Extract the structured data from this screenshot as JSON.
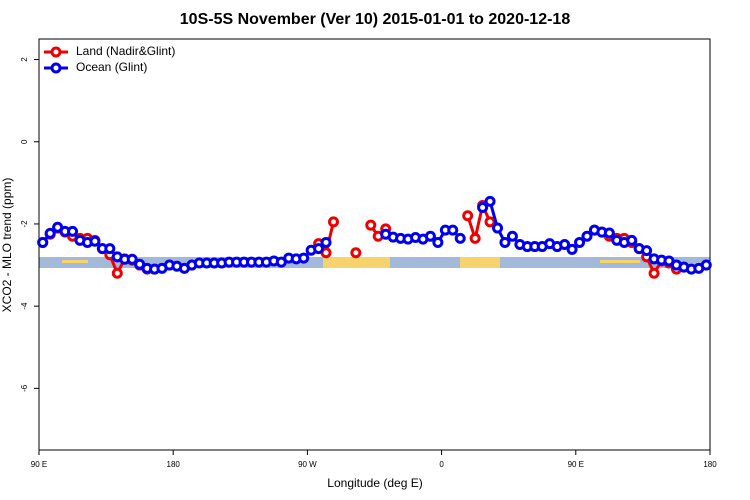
{
  "chart_data": {
    "type": "line",
    "title": "10S-5S November (Ver 10)   2015-01-01 to 2020-12-18",
    "xlabel": "Longitude (deg E)",
    "ylabel": "XCO2 - MLO trend (ppm)",
    "xlim": [
      90,
      540
    ],
    "ylim": [
      -7.5,
      2.5
    ],
    "xticks": [
      {
        "value": 90,
        "label": "90 E"
      },
      180,
      {
        "value": 270,
        "label": "90 W"
      },
      {
        "value": 360,
        "label": "0"
      },
      {
        "value": 450,
        "label": "90 E"
      },
      {
        "value": 540,
        "label": "180"
      }
    ],
    "yticks": [
      -6,
      -4,
      -2,
      0,
      2
    ],
    "legend": "top-left",
    "x": [
      92.5,
      97.5,
      102.5,
      107.5,
      112.5,
      117.5,
      122.5,
      127.5,
      132.5,
      137.5,
      142.5,
      147.5,
      152.5,
      157.5,
      162.5,
      167.5,
      172.5,
      177.5,
      182.5,
      187.5,
      192.5,
      197.5,
      202.5,
      207.5,
      212.5,
      217.5,
      222.5,
      227.5,
      232.5,
      237.5,
      242.5,
      247.5,
      252.5,
      257.5,
      262.5,
      267.5,
      272.5,
      277.5,
      282.5,
      287.5,
      292.5,
      297.5,
      302.5,
      307.5,
      312.5,
      317.5,
      322.5,
      327.5,
      332.5,
      337.5,
      342.5,
      347.5,
      352.5,
      357.5,
      362.5,
      367.5,
      372.5,
      377.5,
      382.5,
      387.5,
      392.5,
      397.5,
      402.5,
      407.5,
      412.5,
      417.5,
      422.5,
      427.5,
      432.5,
      437.5,
      442.5,
      447.5,
      452.5,
      457.5,
      462.5,
      467.5,
      472.5,
      477.5,
      482.5,
      487.5,
      492.5,
      497.5,
      502.5,
      507.5,
      512.5,
      517.5,
      522.5,
      527.5,
      532.5,
      537.5
    ],
    "series": [
      {
        "name": "Land (Nadir&Glint)",
        "color": "#ee0000",
        "values": [
          -2.45,
          -2.25,
          -2.1,
          -2.2,
          -2.3,
          -2.35,
          -2.35,
          -2.4,
          -2.6,
          -2.75,
          -3.2,
          -2.85,
          -2.88,
          -3.0,
          -3.1,
          -3.1,
          null,
          null,
          null,
          null,
          null,
          null,
          null,
          null,
          null,
          null,
          null,
          null,
          null,
          null,
          null,
          null,
          null,
          null,
          null,
          null,
          null,
          -2.48,
          -2.7,
          -1.95,
          null,
          null,
          -2.7,
          null,
          -2.03,
          -2.3,
          -2.12,
          null,
          null,
          null,
          null,
          null,
          null,
          null,
          null,
          null,
          null,
          -1.8,
          -2.35,
          -1.55,
          -1.95,
          null,
          null,
          null,
          null,
          null,
          null,
          null,
          null,
          null,
          null,
          null,
          null,
          null,
          -2.15,
          -2.2,
          -2.3,
          -2.35,
          -2.35,
          -2.45,
          -2.6,
          -2.8,
          -3.2,
          -2.9,
          -2.95,
          -3.1,
          -3.05,
          null,
          null,
          null
        ]
      },
      {
        "name": "Ocean (Glint)",
        "color": "#0000ee",
        "values": [
          -2.45,
          -2.23,
          -2.08,
          -2.18,
          -2.18,
          -2.4,
          -2.45,
          -2.42,
          -2.6,
          -2.6,
          -2.8,
          -2.86,
          -2.86,
          -2.98,
          -3.08,
          -3.1,
          -3.08,
          -3.0,
          -3.03,
          -3.08,
          -3.0,
          -2.95,
          -2.95,
          -2.95,
          -2.95,
          -2.93,
          -2.93,
          -2.93,
          -2.93,
          -2.93,
          -2.93,
          -2.9,
          -2.93,
          -2.83,
          -2.85,
          -2.83,
          -2.64,
          -2.6,
          -2.45,
          null,
          null,
          null,
          null,
          null,
          null,
          null,
          -2.25,
          -2.32,
          -2.35,
          -2.37,
          -2.33,
          -2.37,
          -2.3,
          -2.45,
          -2.15,
          -2.15,
          -2.35,
          null,
          null,
          -1.6,
          -1.45,
          -2.1,
          -2.45,
          -2.3,
          -2.5,
          -2.55,
          -2.55,
          -2.55,
          -2.48,
          -2.55,
          -2.5,
          -2.62,
          -2.45,
          -2.3,
          -2.15,
          -2.2,
          -2.22,
          -2.4,
          -2.45,
          -2.4,
          -2.6,
          -2.65,
          -2.85,
          -2.88,
          -2.9,
          -3.0,
          -3.05,
          -3.1,
          -3.08,
          -3.0
        ]
      }
    ]
  }
}
